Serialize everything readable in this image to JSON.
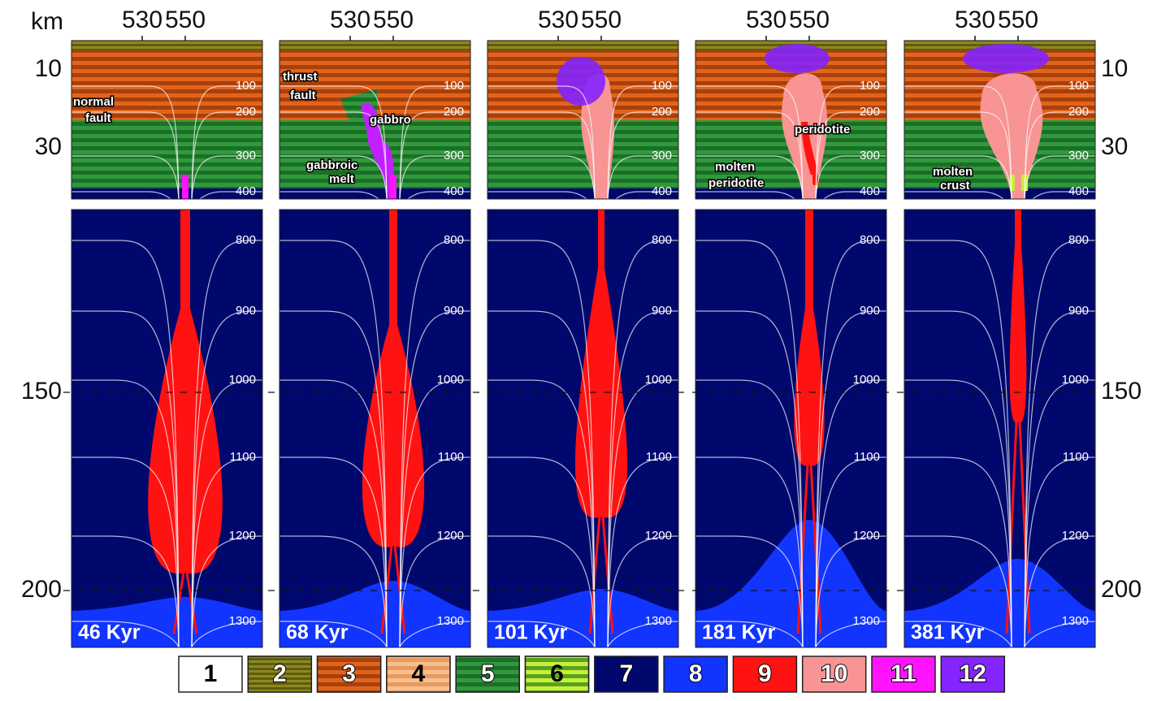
{
  "axes": {
    "unit": "km",
    "top_ticks": [
      "530",
      "550"
    ],
    "left_ticks": [
      "10",
      "30",
      "150",
      "200"
    ],
    "right_ticks": [
      "10",
      "30",
      "150",
      "200"
    ]
  },
  "isotherms": [
    "100",
    "200",
    "300",
    "400",
    "800",
    "900",
    "1000",
    "1100",
    "1200",
    "1300"
  ],
  "panels": [
    {
      "time": "46 Kyr",
      "annotations": [
        [
          "normal",
          "fault"
        ]
      ]
    },
    {
      "time": "68 Kyr",
      "annotations": [
        [
          "thrust",
          "fault"
        ],
        [
          "gabbro"
        ],
        [
          "gabbroic",
          "melt"
        ]
      ]
    },
    {
      "time": "101 Kyr",
      "annotations": []
    },
    {
      "time": "181 Kyr",
      "annotations": [
        [
          "peridotite"
        ],
        [
          "molten",
          "peridotite"
        ]
      ]
    },
    {
      "time": "381 Kyr",
      "annotations": [
        [
          "molten",
          "crust"
        ]
      ]
    }
  ],
  "legend": [
    {
      "label": "1",
      "color": "#ffffff"
    },
    {
      "label": "2",
      "color": "#8c8a1e"
    },
    {
      "label": "3",
      "color": "#e2641c"
    },
    {
      "label": "4",
      "color": "#f8c08e"
    },
    {
      "label": "5",
      "color": "#2f9a3c"
    },
    {
      "label": "6",
      "color": "#c6f03a"
    },
    {
      "label": "7",
      "color": "#00086e"
    },
    {
      "label": "8",
      "color": "#1234ff"
    },
    {
      "label": "9",
      "color": "#ff1212"
    },
    {
      "label": "10",
      "color": "#f89494"
    },
    {
      "label": "11",
      "color": "#ff14ff"
    },
    {
      "label": "12",
      "color": "#8424ff"
    }
  ]
}
